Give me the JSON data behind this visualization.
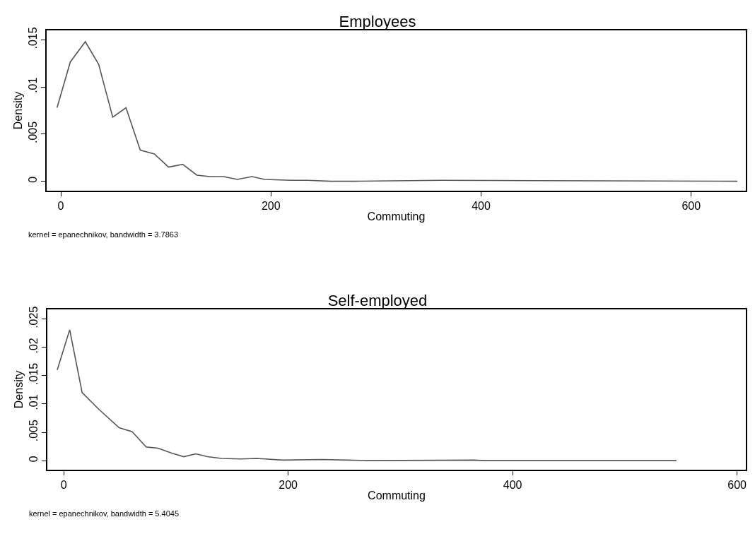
{
  "chart_data": [
    {
      "type": "line",
      "title": "Employees",
      "xlabel": "Commuting",
      "ylabel": "Density",
      "annotations": [
        "kernel = epanechnikov, bandwidth = 3.7863"
      ],
      "x": [
        -3.6,
        9,
        23.3,
        36,
        49.4,
        62,
        75.6,
        89,
        102.6,
        116,
        129.5,
        142,
        155,
        168,
        182,
        194,
        219,
        235,
        257,
        279,
        362,
        644
      ],
      "series": [
        {
          "color": "#555555",
          "values": [
            0.0078,
            0.01265,
            0.0148,
            0.0124,
            0.0068,
            0.0078,
            0.0033,
            0.0029,
            0.0015,
            0.0018,
            0.00065,
            0.0005,
            0.0005,
            0.0002,
            0.0005,
            0.0002,
            0.0001,
            0.0001,
            0,
            0,
            0.0001,
            0
          ]
        }
      ],
      "xlim": [
        -13.5,
        652
      ],
      "ylim": [
        -0.001,
        0.016
      ],
      "xticks": [
        0,
        200,
        400,
        600
      ],
      "yticks": [
        0,
        {
          "value": 0.005,
          "label": ".005"
        },
        {
          "value": 0.01,
          "label": ".01"
        },
        {
          "value": 0.015,
          "label": ".015"
        }
      ],
      "grid": false,
      "legend": false,
      "marker": "none",
      "line_style": "solid"
    },
    {
      "type": "line",
      "title": "Self-employed",
      "xlabel": "Commuting",
      "ylabel": "Density",
      "annotations": [
        "kernel = epanechnikov, bandwidth = 5.4045"
      ],
      "x": [
        -5.8,
        5.3,
        16.4,
        31.6,
        49.4,
        61,
        73.6,
        84,
        96.6,
        107,
        117.7,
        128,
        140.7,
        157.5,
        172,
        195,
        230,
        253,
        273,
        365,
        377,
        546
      ],
      "series": [
        {
          "color": "#555555",
          "values": [
            0.016,
            0.0231,
            0.012,
            0.009,
            0.0058,
            0.0051,
            0.0024,
            0.0022,
            0.0013,
            0.0007,
            0.0012,
            0.0007,
            0.0004,
            0.0003,
            0.0004,
            0.0001,
            0.0002,
            0.0001,
            0,
            0.0001,
            0,
            0
          ]
        }
      ],
      "xlim": [
        -14.6,
        607.8
      ],
      "ylim": [
        -0.0016,
        0.0267
      ],
      "xticks": [
        0,
        200,
        400,
        600
      ],
      "yticks": [
        0,
        {
          "value": 0.005,
          "label": ".005"
        },
        {
          "value": 0.01,
          "label": ".01"
        },
        {
          "value": 0.015,
          "label": ".015"
        },
        {
          "value": 0.02,
          "label": ".02"
        },
        {
          "value": 0.025,
          "label": ".025"
        }
      ],
      "grid": false,
      "legend": false,
      "marker": "none",
      "line_style": "solid"
    }
  ]
}
